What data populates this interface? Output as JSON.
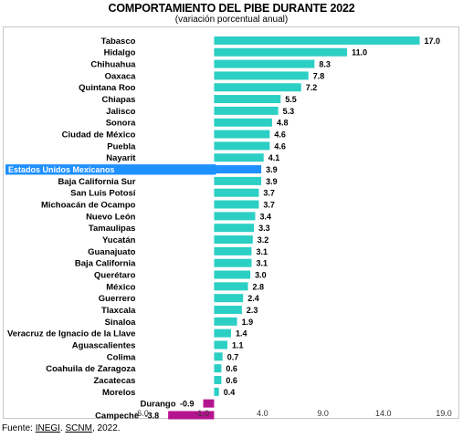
{
  "chart_data": {
    "type": "bar",
    "orientation": "horizontal",
    "title": "COMPORTAMIENTO DEL PIBE DURANTE 2022",
    "subtitle": "(variación porcentual anual)",
    "categories": [
      "Tabasco",
      "Hidalgo",
      "Chihuahua",
      "Oaxaca",
      "Quintana Roo",
      "Chiapas",
      "Jalisco",
      "Sonora",
      "Ciudad de México",
      "Puebla",
      "Nayarit",
      "Estados Unidos Mexicanos",
      "Baja California Sur",
      "San Luis Potosí",
      "Michoacán de Ocampo",
      "Nuevo León",
      "Tamaulipas",
      "Yucatán",
      "Guanajuato",
      "Baja California",
      "Querétaro",
      "México",
      "Guerrero",
      "Tlaxcala",
      "Sinaloa",
      "Veracruz de Ignacio de la Llave",
      "Aguascalientes",
      "Colima",
      "Coahuila de Zaragoza",
      "Zacatecas",
      "Morelos",
      "Durango",
      "Campeche"
    ],
    "values": [
      17.0,
      11.0,
      8.3,
      7.8,
      7.2,
      5.5,
      5.3,
      4.8,
      4.6,
      4.6,
      4.1,
      3.9,
      3.9,
      3.7,
      3.7,
      3.4,
      3.3,
      3.2,
      3.1,
      3.1,
      3.0,
      2.8,
      2.4,
      2.3,
      1.9,
      1.4,
      1.1,
      0.7,
      0.6,
      0.6,
      0.4,
      -0.9,
      -3.8
    ],
    "value_labels": [
      "17.0",
      "11.0",
      "8.3",
      "7.8",
      "7.2",
      "5.5",
      "5.3",
      "4.8",
      "4.6",
      "4.6",
      "4.1",
      "3.9",
      "3.9",
      "3.7",
      "3.7",
      "3.4",
      "3.3",
      "3.2",
      "3.1",
      "3.1",
      "3.0",
      "2.8",
      "2.4",
      "2.3",
      "1.9",
      "1.4",
      "1.1",
      "0.7",
      "0.6",
      "0.6",
      "0.4",
      "-0.9",
      "-3.8"
    ],
    "highlight_category": "Estados Unidos Mexicanos",
    "xlim": [
      -6.0,
      19.0
    ],
    "xticks": [
      -6.0,
      -1.0,
      4.0,
      9.0,
      14.0,
      19.0
    ],
    "xtick_labels": [
      "-6.0",
      "-1.0",
      "4.0",
      "9.0",
      "14.0",
      "19.0"
    ],
    "colors": {
      "positive": "#2ccfc4",
      "negative": "#b5148f",
      "highlight": "#1e90ff",
      "highlight_text": "#ffffff"
    },
    "grid": false,
    "legend": "none"
  },
  "source": {
    "prefix": "Fuente: ",
    "org1": "INEGI",
    "sep": ". ",
    "org2": "SCNM",
    "suffix": ", 2022."
  }
}
